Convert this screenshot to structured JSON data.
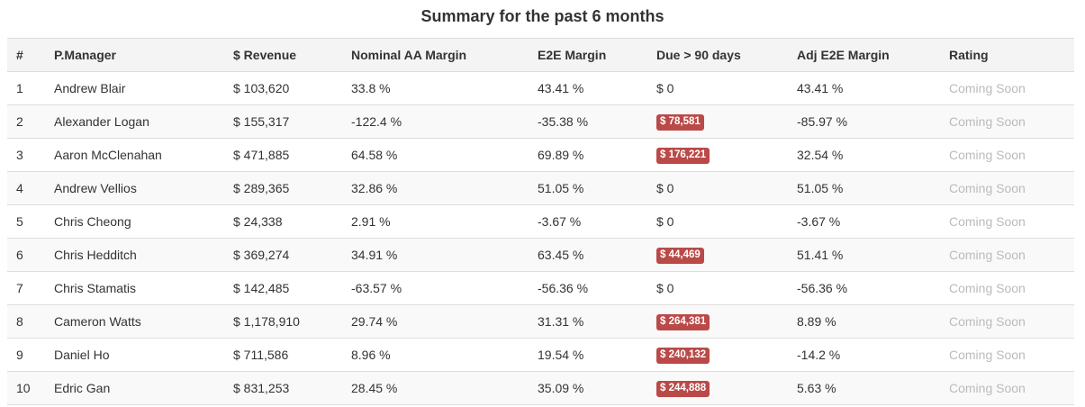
{
  "title": "Summary for the past 6 months",
  "columns": [
    "#",
    "P.Manager",
    "$ Revenue",
    "Nominal AA Margin",
    "E2E Margin",
    "Due > 90 days",
    "Adj E2E Margin",
    "Rating"
  ],
  "colors": {
    "badge": "#b94a48",
    "rating_text": "#bbbbbb"
  },
  "rows": [
    {
      "num": "1",
      "manager": "Andrew Blair",
      "revenue": "$ 103,620",
      "nominal": "33.8 %",
      "e2e": "43.41 %",
      "due": "$ 0",
      "due_alert": false,
      "adj": "43.41 %",
      "rating": "Coming Soon"
    },
    {
      "num": "2",
      "manager": "Alexander Logan",
      "revenue": "$ 155,317",
      "nominal": "-122.4 %",
      "e2e": "-35.38 %",
      "due": "$ 78,581",
      "due_alert": true,
      "adj": "-85.97 %",
      "rating": "Coming Soon"
    },
    {
      "num": "3",
      "manager": "Aaron McClenahan",
      "revenue": "$ 471,885",
      "nominal": "64.58 %",
      "e2e": "69.89 %",
      "due": "$ 176,221",
      "due_alert": true,
      "adj": "32.54 %",
      "rating": "Coming Soon"
    },
    {
      "num": "4",
      "manager": "Andrew Vellios",
      "revenue": "$ 289,365",
      "nominal": "32.86 %",
      "e2e": "51.05 %",
      "due": "$ 0",
      "due_alert": false,
      "adj": "51.05 %",
      "rating": "Coming Soon"
    },
    {
      "num": "5",
      "manager": "Chris Cheong",
      "revenue": "$ 24,338",
      "nominal": "2.91 %",
      "e2e": "-3.67 %",
      "due": "$ 0",
      "due_alert": false,
      "adj": "-3.67 %",
      "rating": "Coming Soon"
    },
    {
      "num": "6",
      "manager": "Chris Hedditch",
      "revenue": "$ 369,274",
      "nominal": "34.91 %",
      "e2e": "63.45 %",
      "due": "$ 44,469",
      "due_alert": true,
      "adj": "51.41 %",
      "rating": "Coming Soon"
    },
    {
      "num": "7",
      "manager": "Chris Stamatis",
      "revenue": "$ 142,485",
      "nominal": "-63.57 %",
      "e2e": "-56.36 %",
      "due": "$ 0",
      "due_alert": false,
      "adj": "-56.36 %",
      "rating": "Coming Soon"
    },
    {
      "num": "8",
      "manager": "Cameron Watts",
      "revenue": "$ 1,178,910",
      "nominal": "29.74 %",
      "e2e": "31.31 %",
      "due": "$ 264,381",
      "due_alert": true,
      "adj": "8.89 %",
      "rating": "Coming Soon"
    },
    {
      "num": "9",
      "manager": "Daniel Ho",
      "revenue": "$ 711,586",
      "nominal": "8.96 %",
      "e2e": "19.54 %",
      "due": "$ 240,132",
      "due_alert": true,
      "adj": "-14.2 %",
      "rating": "Coming Soon"
    },
    {
      "num": "10",
      "manager": "Edric Gan",
      "revenue": "$ 831,253",
      "nominal": "28.45 %",
      "e2e": "35.09 %",
      "due": "$ 244,888",
      "due_alert": true,
      "adj": "5.63 %",
      "rating": "Coming Soon"
    }
  ]
}
